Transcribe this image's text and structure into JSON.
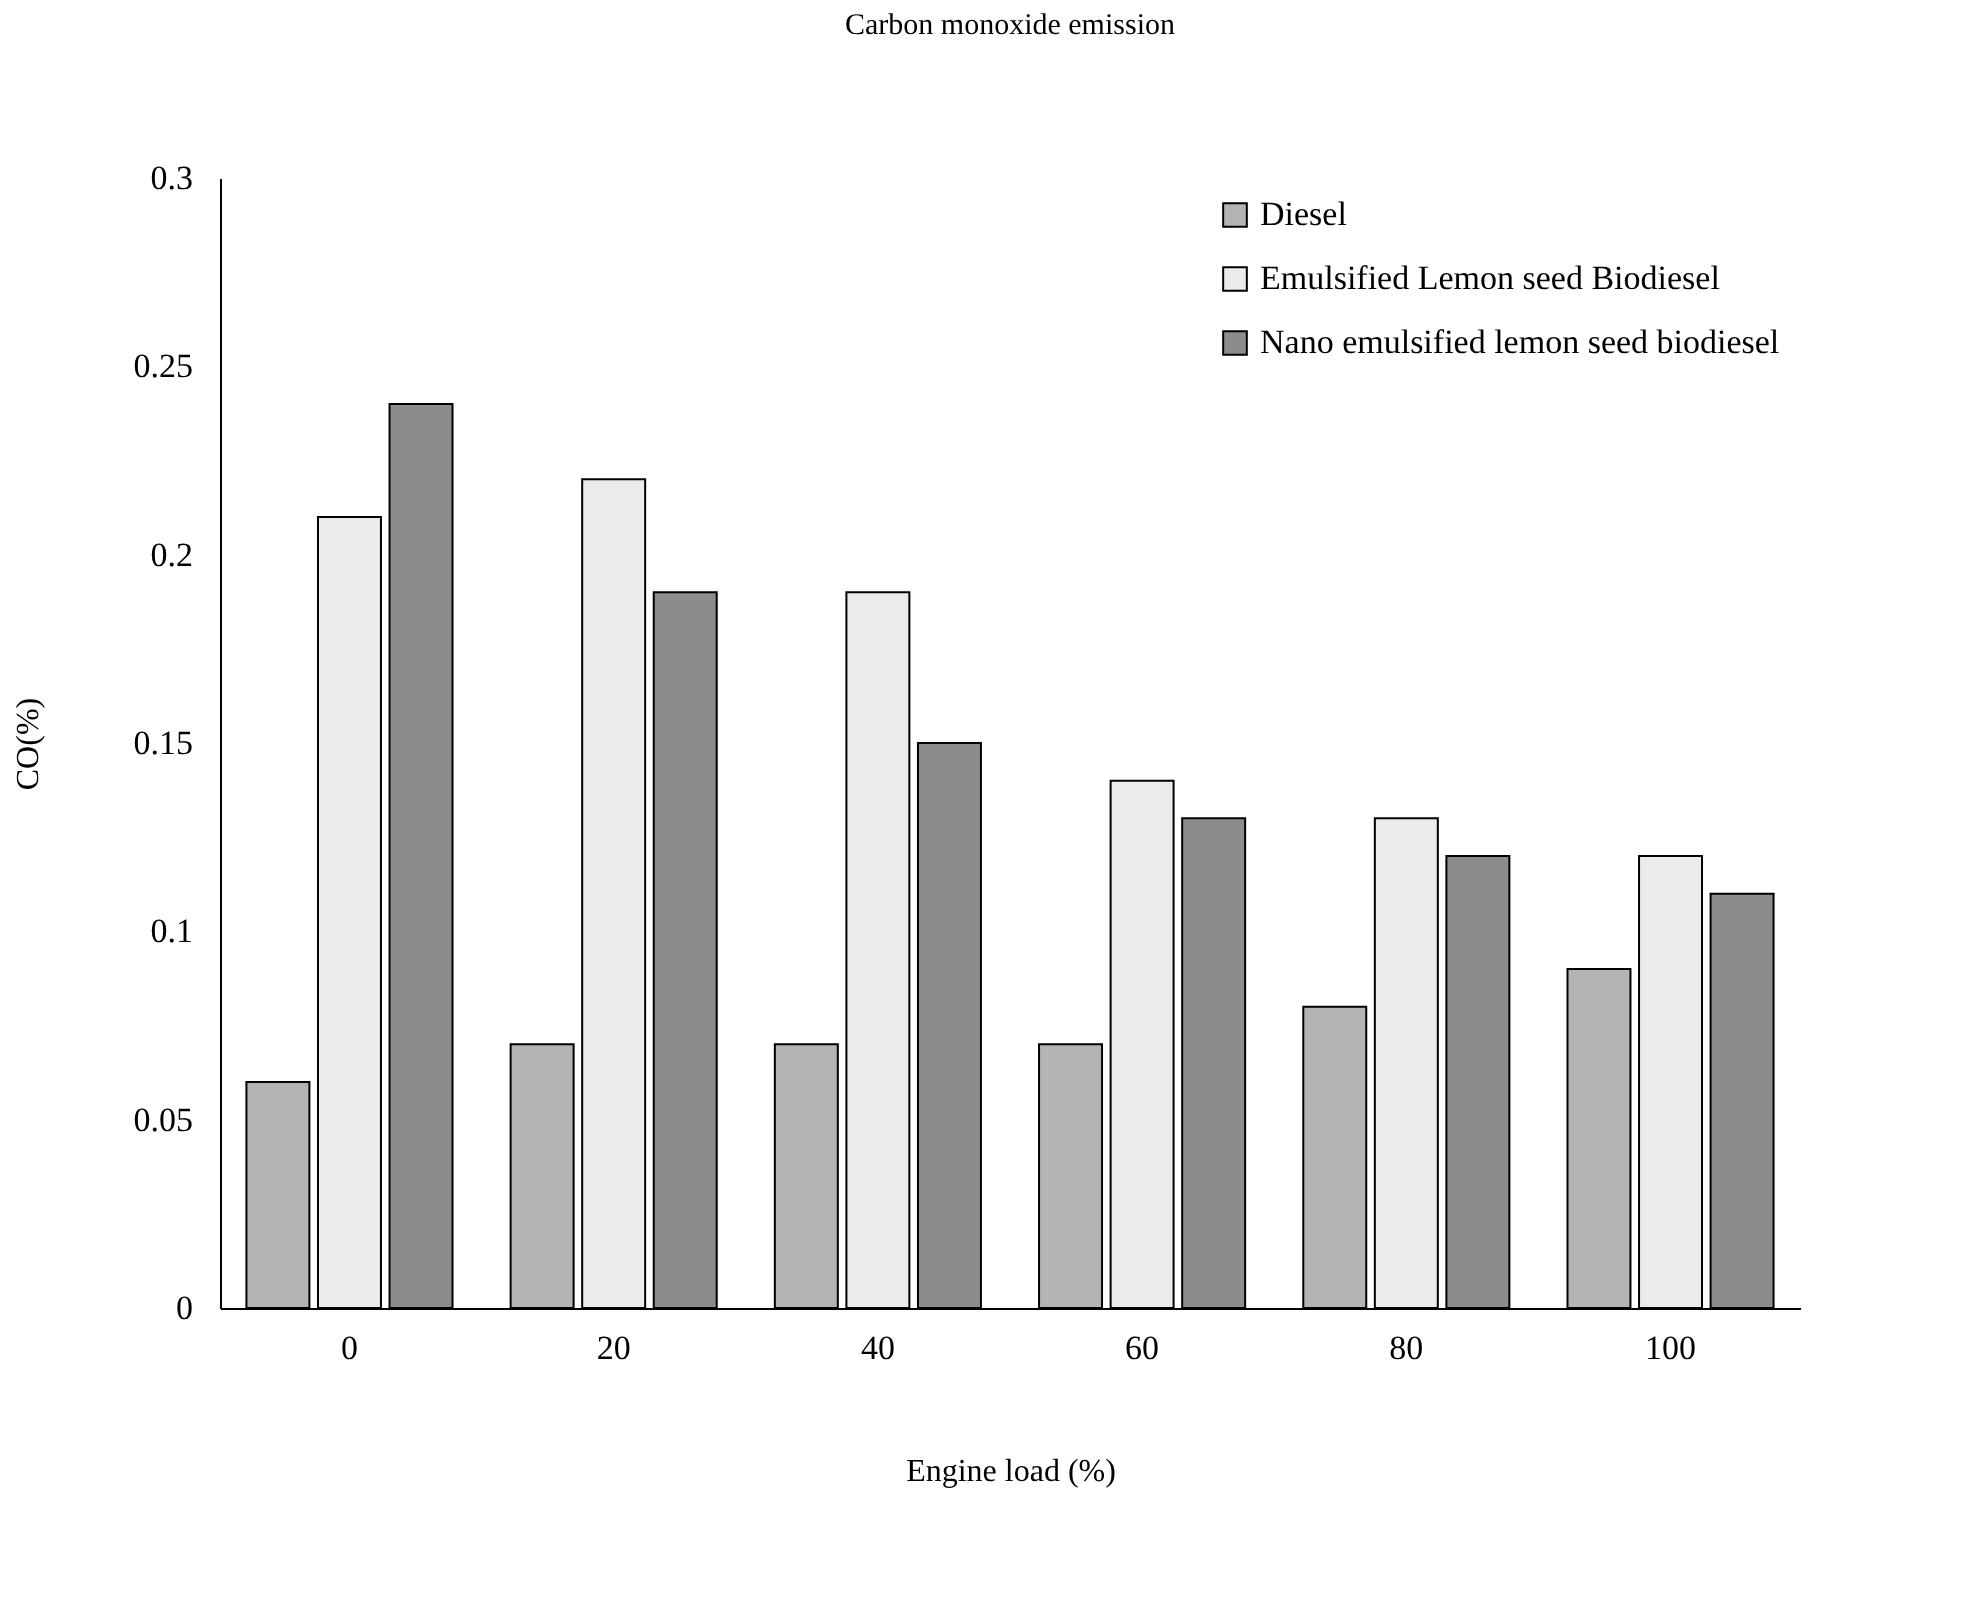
{
  "chart_data": {
    "type": "bar",
    "title": "Carbon monoxide emission",
    "xlabel": "Engine load (%)",
    "ylabel": "CO(%)",
    "categories": [
      "0",
      "20",
      "40",
      "60",
      "80",
      "100"
    ],
    "series": [
      {
        "name": "Diesel",
        "color": "#b4b4b4",
        "values": [
          0.06,
          0.07,
          0.07,
          0.07,
          0.08,
          0.09
        ]
      },
      {
        "name": "Emulsified Lemon seed Biodiesel",
        "color": "#ebebeb",
        "values": [
          0.21,
          0.22,
          0.19,
          0.14,
          0.13,
          0.12
        ]
      },
      {
        "name": "Nano emulsified lemon seed biodiesel",
        "color": "#8c8c8c",
        "values": [
          0.24,
          0.19,
          0.15,
          0.13,
          0.12,
          0.11
        ]
      }
    ],
    "ylim": [
      0,
      0.3
    ],
    "yticks": [
      0,
      0.05,
      0.1,
      0.15,
      0.2,
      0.25,
      0.3
    ],
    "grid": false,
    "legend": "top right"
  }
}
